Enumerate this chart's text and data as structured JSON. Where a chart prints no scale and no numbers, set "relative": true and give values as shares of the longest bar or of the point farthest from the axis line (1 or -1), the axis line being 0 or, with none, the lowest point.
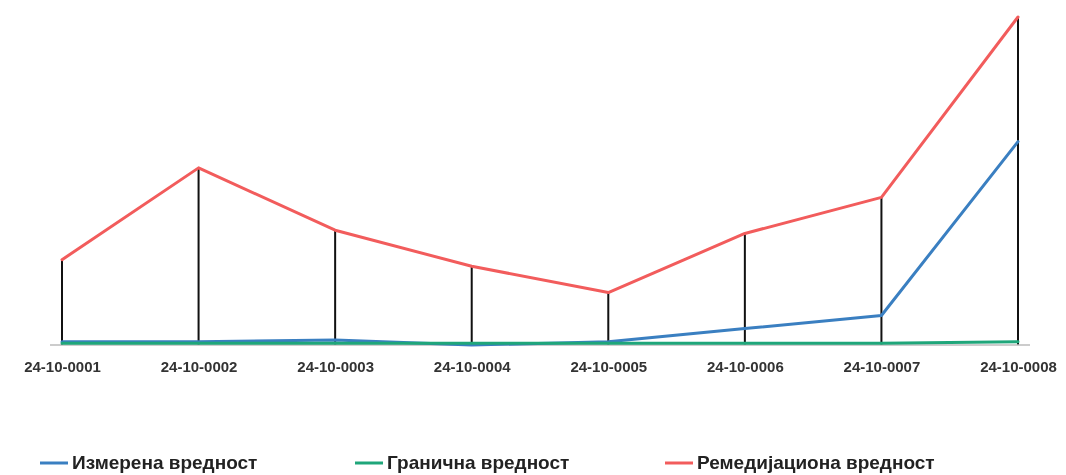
{
  "chart_data": {
    "type": "line",
    "relative": true,
    "legend": "bottom",
    "marker": "none",
    "line_style": "solid",
    "categories": [
      "24-10-0001",
      "24-10-0002",
      "24-10-0003",
      "24-10-0004",
      "24-10-0005",
      "24-10-0006",
      "24-10-0007",
      "24-10-0008"
    ],
    "series": [
      {
        "name": "Измерена вредност",
        "color": "#3a7fc1",
        "values": [
          0.01,
          0.01,
          0.015,
          0,
          0.01,
          0.05,
          0.09,
          0.62
        ]
      },
      {
        "name": "Гранична вредност",
        "color": "#1fa67a",
        "values": [
          0.005,
          0.005,
          0.005,
          0.005,
          0.005,
          0.005,
          0.005,
          0.01
        ]
      },
      {
        "name": "Ремедијациона вредност",
        "color": "#f25c5c",
        "values": [
          0.26,
          0.54,
          0.35,
          0.24,
          0.16,
          0.34,
          0.45,
          1
        ]
      },
      {
        "type": "bar",
        "color": "#111111",
        "values": [
          0.26,
          0.54,
          0.35,
          0.24,
          0.16,
          0.34,
          0.45,
          1
        ]
      }
    ]
  }
}
